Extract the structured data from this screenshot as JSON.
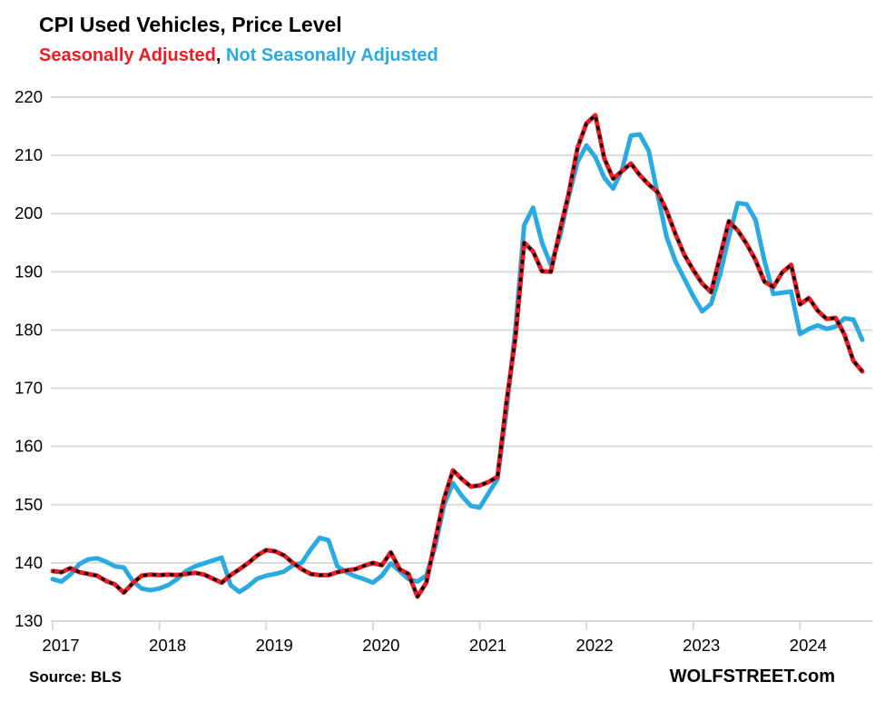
{
  "header": {
    "title": "CPI Used Vehicles, Price Level",
    "subtitle_sa": "Seasonally Adjusted",
    "subtitle_sep": ", ",
    "subtitle_nsa": "Not Seasonally Adjusted"
  },
  "footer": {
    "source": "Source: BLS",
    "watermark": "WOLFSTREET.com"
  },
  "colors": {
    "sa_red": "#ec1c24",
    "nsa_blue": "#29abe2",
    "marker_black": "#000000",
    "grid_gray": "#d9d9d9",
    "text_black": "#000000"
  },
  "chart_data": {
    "type": "line",
    "title": "CPI Used Vehicles, Price Level",
    "xlabel": "",
    "ylabel": "",
    "x_monthly_range": "2017-01 to 2024-08",
    "x_tick_labels": [
      "2017",
      "2018",
      "2019",
      "2020",
      "2021",
      "2022",
      "2023",
      "2024"
    ],
    "y_ticks": [
      130,
      140,
      150,
      160,
      170,
      180,
      190,
      200,
      210,
      220
    ],
    "ylim": [
      130,
      220
    ],
    "grid": "horizontal",
    "legend_position": "subtitle-inline",
    "series": [
      {
        "name": "Seasonally Adjusted",
        "color": "#ec1c24",
        "marker": "black-dashes",
        "values": [
          138.6,
          138.4,
          139.1,
          138.4,
          138.1,
          137.8,
          136.9,
          136.3,
          134.9,
          136.5,
          137.8,
          138.0,
          137.9,
          138.0,
          137.9,
          138.1,
          138.3,
          138.0,
          137.3,
          136.6,
          137.9,
          138.9,
          140.0,
          141.3,
          142.2,
          142.0,
          141.3,
          140.0,
          138.9,
          138.1,
          137.9,
          137.9,
          138.4,
          138.7,
          138.9,
          139.5,
          140.0,
          139.6,
          141.8,
          138.9,
          138.1,
          134.2,
          136.6,
          143.9,
          151.1,
          155.9,
          154.4,
          153.1,
          153.3,
          153.9,
          154.8,
          167.5,
          178.5,
          195.0,
          193.5,
          190.1,
          190.0,
          197.0,
          203.4,
          211.3,
          215.5,
          216.9,
          209.5,
          206.0,
          207.3,
          208.6,
          206.6,
          205.0,
          203.7,
          200.5,
          196.5,
          192.9,
          190.3,
          188.0,
          186.5,
          192.6,
          198.7,
          197.1,
          194.8,
          192.0,
          188.3,
          187.4,
          189.9,
          191.2,
          184.4,
          185.5,
          183.3,
          181.9,
          182.1,
          179.2,
          174.7,
          172.9
        ]
      },
      {
        "name": "Not Seasonally Adjusted",
        "color": "#29abe2",
        "marker": "none",
        "values": [
          137.2,
          136.8,
          138.0,
          139.8,
          140.6,
          140.8,
          140.2,
          139.4,
          139.2,
          136.9,
          135.6,
          135.3,
          135.6,
          136.2,
          137.2,
          138.6,
          139.4,
          139.9,
          140.4,
          140.9,
          136.2,
          135.0,
          136.0,
          137.3,
          137.8,
          138.1,
          138.5,
          139.6,
          140.0,
          142.3,
          144.3,
          143.9,
          139.4,
          138.4,
          137.7,
          137.2,
          136.6,
          137.8,
          139.9,
          138.6,
          137.2,
          136.8,
          137.8,
          142.8,
          150.0,
          153.7,
          151.5,
          149.8,
          149.5,
          152.0,
          154.4,
          166.0,
          180.0,
          198.0,
          201.0,
          195.0,
          191.2,
          195.9,
          202.9,
          208.9,
          211.7,
          209.7,
          206.2,
          204.3,
          207.5,
          213.4,
          213.6,
          210.8,
          203.3,
          196.0,
          191.8,
          188.8,
          185.8,
          183.2,
          184.5,
          189.5,
          196.0,
          201.8,
          201.6,
          198.9,
          191.9,
          186.2,
          186.4,
          186.6,
          179.3,
          180.2,
          180.8,
          180.2,
          180.6,
          182.0,
          181.8,
          178.3
        ]
      }
    ]
  }
}
